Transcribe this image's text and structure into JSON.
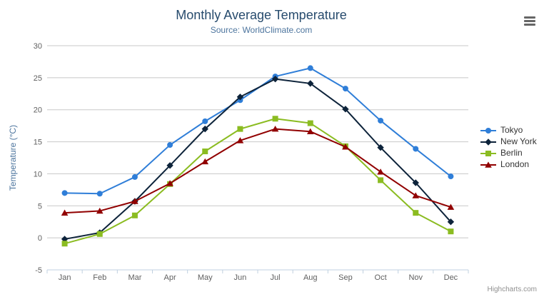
{
  "chart_data": {
    "type": "line",
    "title": "Monthly Average Temperature",
    "subtitle": "Source: WorldClimate.com",
    "categories": [
      "Jan",
      "Feb",
      "Mar",
      "Apr",
      "May",
      "Jun",
      "Jul",
      "Aug",
      "Sep",
      "Oct",
      "Nov",
      "Dec"
    ],
    "xlabel": "",
    "ylabel": "Temperature (°C)",
    "ylim": [
      -5,
      30
    ],
    "ytick_interval": 5,
    "grid": true,
    "legend_position": "right",
    "series": [
      {
        "name": "Tokyo",
        "color": "#2f7ed8",
        "marker": "circle",
        "values": [
          7.0,
          6.9,
          9.5,
          14.5,
          18.2,
          21.5,
          25.2,
          26.5,
          23.3,
          18.3,
          13.9,
          9.6
        ]
      },
      {
        "name": "New York",
        "color": "#0d233a",
        "marker": "diamond",
        "values": [
          -0.2,
          0.8,
          5.7,
          11.3,
          17.0,
          22.0,
          24.8,
          24.1,
          20.1,
          14.1,
          8.6,
          2.5
        ]
      },
      {
        "name": "Berlin",
        "color": "#8bbc21",
        "marker": "square",
        "values": [
          -0.9,
          0.6,
          3.5,
          8.4,
          13.5,
          17.0,
          18.6,
          17.9,
          14.3,
          9.0,
          3.9,
          1.0
        ]
      },
      {
        "name": "London",
        "color": "#910000",
        "marker": "triangle",
        "values": [
          3.9,
          4.2,
          5.7,
          8.5,
          11.9,
          15.2,
          17.0,
          16.6,
          14.2,
          10.3,
          6.6,
          4.8
        ]
      }
    ],
    "axis_colors": {
      "gridline": "#c8c8c8",
      "axis_line": "#c0d0e0",
      "tick": "#c0d0e0"
    }
  },
  "toolbar": {
    "context_menu_icon": "hamburger-icon"
  },
  "credits": {
    "text": "Highcharts.com"
  }
}
